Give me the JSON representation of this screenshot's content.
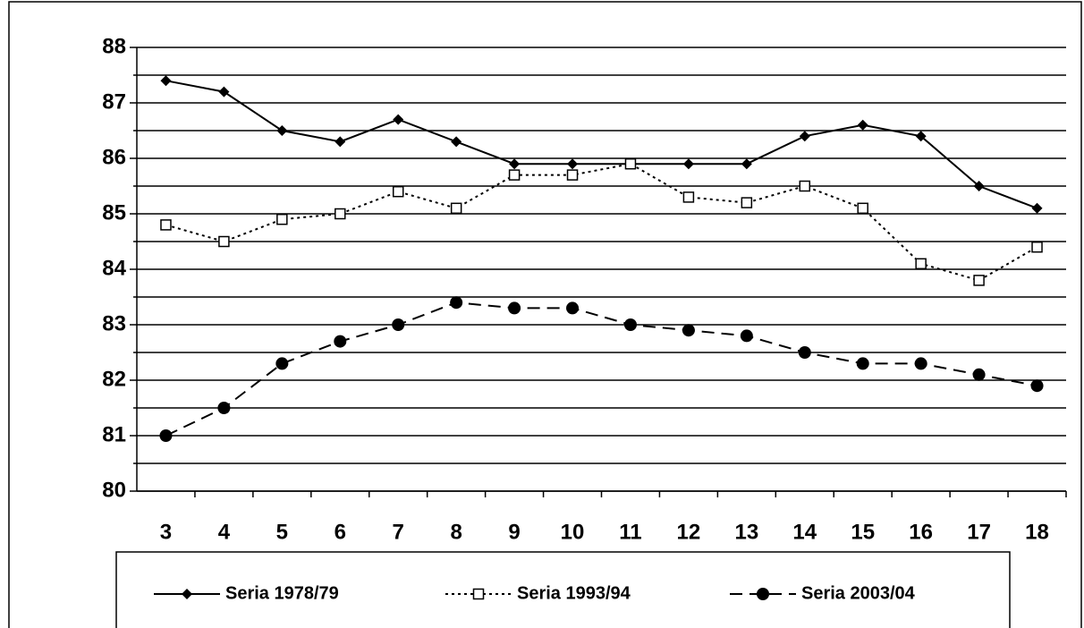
{
  "chart_data": {
    "type": "line",
    "categories": [
      "3",
      "4",
      "5",
      "6",
      "7",
      "8",
      "9",
      "10",
      "11",
      "12",
      "13",
      "14",
      "15",
      "16",
      "17",
      "18"
    ],
    "series": [
      {
        "name": "Seria 1978/79",
        "color": "#000000",
        "line_style": "solid",
        "marker": "diamond",
        "values": [
          87.4,
          87.2,
          86.5,
          86.3,
          86.7,
          86.3,
          85.9,
          85.9,
          85.9,
          85.9,
          85.9,
          86.4,
          86.6,
          86.4,
          85.5,
          85.1
        ]
      },
      {
        "name": "Seria 1993/94",
        "color": "#000000",
        "line_style": "dotted",
        "marker": "open-square",
        "values": [
          84.8,
          84.5,
          84.9,
          85.0,
          85.4,
          85.1,
          85.7,
          85.7,
          85.9,
          85.3,
          85.2,
          85.5,
          85.1,
          84.1,
          83.8,
          84.4
        ]
      },
      {
        "name": "Seria 2003/04",
        "color": "#000000",
        "line_style": "dashed",
        "marker": "circle",
        "values": [
          81.0,
          81.5,
          82.3,
          82.7,
          83.0,
          83.4,
          83.3,
          83.3,
          83.0,
          82.9,
          82.8,
          82.5,
          82.3,
          82.3,
          82.1,
          81.9
        ]
      }
    ],
    "ylim": [
      80,
      88
    ],
    "yticks": [
      80,
      81,
      82,
      83,
      84,
      85,
      86,
      87,
      88
    ],
    "minor_yticks": [
      80.5,
      81.5,
      82.5,
      83.5,
      84.5,
      85.5,
      86.5,
      87.5
    ],
    "grid": true,
    "legend": "bottom"
  }
}
